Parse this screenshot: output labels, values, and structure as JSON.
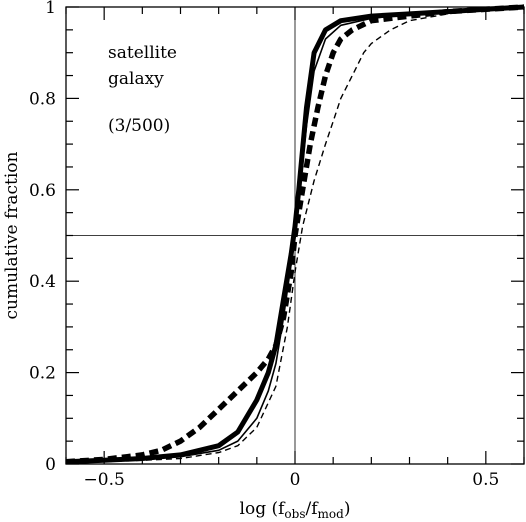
{
  "chart_data": {
    "type": "line",
    "xlabel": "log (f_obs/f_mod)",
    "xlabel_parts": {
      "prefix": "log (f",
      "sub1": "obs",
      "mid": "/f",
      "sub2": "mod",
      "suffix": ")"
    },
    "ylabel": "cumulative fraction",
    "xlim": [
      -0.6,
      0.6
    ],
    "ylim": [
      0,
      1
    ],
    "x_ticks": [
      {
        "value": -0.5,
        "label": "−0.5"
      },
      {
        "value": 0,
        "label": "0"
      },
      {
        "value": 0.5,
        "label": "0.5"
      }
    ],
    "y_ticks": [
      {
        "value": 0,
        "label": "0"
      },
      {
        "value": 0.2,
        "label": "0.2"
      },
      {
        "value": 0.4,
        "label": "0.4"
      },
      {
        "value": 0.6,
        "label": "0.6"
      },
      {
        "value": 0.8,
        "label": "0.8"
      },
      {
        "value": 1,
        "label": "1"
      }
    ],
    "x_minor_step": 0.1,
    "y_minor_step": 0.05,
    "annotations": [
      "satellite",
      "galaxy",
      "(3/500)"
    ],
    "reference_lines": {
      "vertical_x": 0,
      "horizontal_y": 0.5
    },
    "grid": false,
    "series": [
      {
        "style": "thick-solid",
        "x": [
          -0.6,
          -0.5,
          -0.4,
          -0.3,
          -0.2,
          -0.15,
          -0.1,
          -0.07,
          -0.05,
          -0.03,
          -0.01,
          0,
          0.01,
          0.03,
          0.05,
          0.08,
          0.12,
          0.2,
          0.3,
          0.4,
          0.5,
          0.6
        ],
        "y": [
          0.005,
          0.008,
          0.012,
          0.02,
          0.04,
          0.07,
          0.14,
          0.2,
          0.26,
          0.36,
          0.46,
          0.52,
          0.6,
          0.78,
          0.9,
          0.95,
          0.97,
          0.98,
          0.985,
          0.99,
          0.995,
          1.0
        ]
      },
      {
        "style": "thin-solid",
        "x": [
          -0.6,
          -0.5,
          -0.4,
          -0.3,
          -0.2,
          -0.15,
          -0.1,
          -0.07,
          -0.05,
          -0.03,
          -0.01,
          0,
          0.01,
          0.03,
          0.05,
          0.08,
          0.12,
          0.2,
          0.3,
          0.4,
          0.5,
          0.6
        ],
        "y": [
          0.004,
          0.006,
          0.01,
          0.016,
          0.03,
          0.05,
          0.1,
          0.16,
          0.22,
          0.32,
          0.44,
          0.5,
          0.58,
          0.74,
          0.86,
          0.93,
          0.96,
          0.975,
          0.985,
          0.99,
          0.995,
          1.0
        ]
      },
      {
        "style": "thick-dashed",
        "x": [
          -0.6,
          -0.5,
          -0.4,
          -0.35,
          -0.3,
          -0.25,
          -0.2,
          -0.15,
          -0.1,
          -0.07,
          -0.05,
          -0.03,
          -0.01,
          0,
          0.02,
          0.04,
          0.06,
          0.08,
          0.1,
          0.12,
          0.15,
          0.2,
          0.3,
          0.4,
          0.5,
          0.6
        ],
        "y": [
          0.005,
          0.01,
          0.02,
          0.03,
          0.05,
          0.08,
          0.12,
          0.16,
          0.2,
          0.23,
          0.26,
          0.32,
          0.42,
          0.5,
          0.6,
          0.7,
          0.78,
          0.85,
          0.9,
          0.93,
          0.95,
          0.97,
          0.98,
          0.99,
          0.995,
          1.0
        ]
      },
      {
        "style": "thin-dashed",
        "x": [
          -0.6,
          -0.5,
          -0.4,
          -0.3,
          -0.2,
          -0.15,
          -0.1,
          -0.05,
          -0.02,
          0,
          0.02,
          0.05,
          0.08,
          0.1,
          0.12,
          0.15,
          0.18,
          0.2,
          0.25,
          0.3,
          0.4,
          0.5,
          0.6
        ],
        "y": [
          0.003,
          0.005,
          0.008,
          0.012,
          0.025,
          0.04,
          0.08,
          0.17,
          0.3,
          0.42,
          0.52,
          0.62,
          0.7,
          0.75,
          0.8,
          0.85,
          0.9,
          0.92,
          0.95,
          0.97,
          0.985,
          0.995,
          1.0
        ]
      }
    ]
  }
}
